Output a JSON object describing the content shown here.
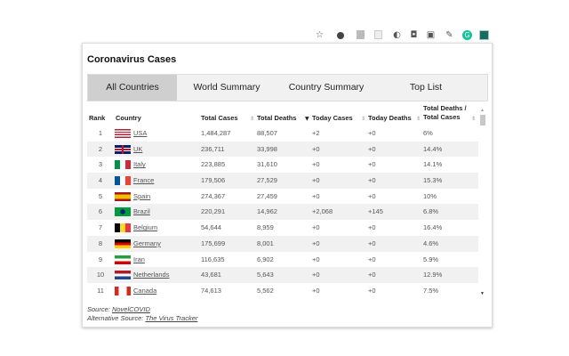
{
  "toolbar": {
    "icons": [
      "star-icon",
      "extension-circle-icon",
      "extension-pdf-icon",
      "extension-page-icon",
      "extension-sync-icon",
      "camera-icon",
      "extension-b-icon",
      "eyedropper-icon",
      "grammarly-icon",
      "coronavirus-extension-icon"
    ]
  },
  "title": "Coronavirus Cases",
  "tabs": [
    {
      "label": "All Countries",
      "active": true
    },
    {
      "label": "World Summary"
    },
    {
      "label": "Country Summary"
    },
    {
      "label": "Top List"
    }
  ],
  "columns": {
    "rank": "Rank",
    "country": "Country",
    "total_cases": "Total Cases",
    "total_deaths": "Total Deaths",
    "today_cases": "Today Cases",
    "today_deaths": "Today Deaths",
    "ratio_1": "Total Deaths /",
    "ratio_2": "Total Cases"
  },
  "rows": [
    {
      "rank": "1",
      "country": "USA",
      "flag": "us",
      "total_cases": "1,484,287",
      "total_deaths": "88,507",
      "today_cases": "+2",
      "today_deaths": "+0",
      "ratio": "6%"
    },
    {
      "rank": "2",
      "country": "UK",
      "flag": "uk",
      "total_cases": "236,711",
      "total_deaths": "33,998",
      "today_cases": "+0",
      "today_deaths": "+0",
      "ratio": "14.4%"
    },
    {
      "rank": "3",
      "country": "Italy",
      "flag": "it",
      "total_cases": "223,885",
      "total_deaths": "31,610",
      "today_cases": "+0",
      "today_deaths": "+0",
      "ratio": "14.1%"
    },
    {
      "rank": "4",
      "country": "France",
      "flag": "fr",
      "total_cases": "179,506",
      "total_deaths": "27,529",
      "today_cases": "+0",
      "today_deaths": "+0",
      "ratio": "15.3%"
    },
    {
      "rank": "5",
      "country": "Spain",
      "flag": "es",
      "total_cases": "274,367",
      "total_deaths": "27,459",
      "today_cases": "+0",
      "today_deaths": "+0",
      "ratio": "10%"
    },
    {
      "rank": "6",
      "country": "Brazil",
      "flag": "br",
      "total_cases": "220,291",
      "total_deaths": "14,962",
      "today_cases": "+2,068",
      "today_deaths": "+145",
      "ratio": "6.8%"
    },
    {
      "rank": "7",
      "country": "Belgium",
      "flag": "be",
      "total_cases": "54,644",
      "total_deaths": "8,959",
      "today_cases": "+0",
      "today_deaths": "+0",
      "ratio": "16.4%"
    },
    {
      "rank": "8",
      "country": "Germany",
      "flag": "de",
      "total_cases": "175,699",
      "total_deaths": "8,001",
      "today_cases": "+0",
      "today_deaths": "+0",
      "ratio": "4.6%"
    },
    {
      "rank": "9",
      "country": "Iran",
      "flag": "ir",
      "total_cases": "116,635",
      "total_deaths": "6,902",
      "today_cases": "+0",
      "today_deaths": "+0",
      "ratio": "5.9%"
    },
    {
      "rank": "10",
      "country": "Netherlands",
      "flag": "nl",
      "total_cases": "43,681",
      "total_deaths": "5,643",
      "today_cases": "+0",
      "today_deaths": "+0",
      "ratio": "12.9%"
    },
    {
      "rank": "11",
      "country": "Canada",
      "flag": "ca",
      "total_cases": "74,613",
      "total_deaths": "5,562",
      "today_cases": "+0",
      "today_deaths": "+0",
      "ratio": "7.5%"
    }
  ],
  "footer": {
    "source_label": "Source:",
    "source_link": "NovelCOVID",
    "alt_label": "Alternative Source:",
    "alt_link": "The Virus Tracker"
  }
}
